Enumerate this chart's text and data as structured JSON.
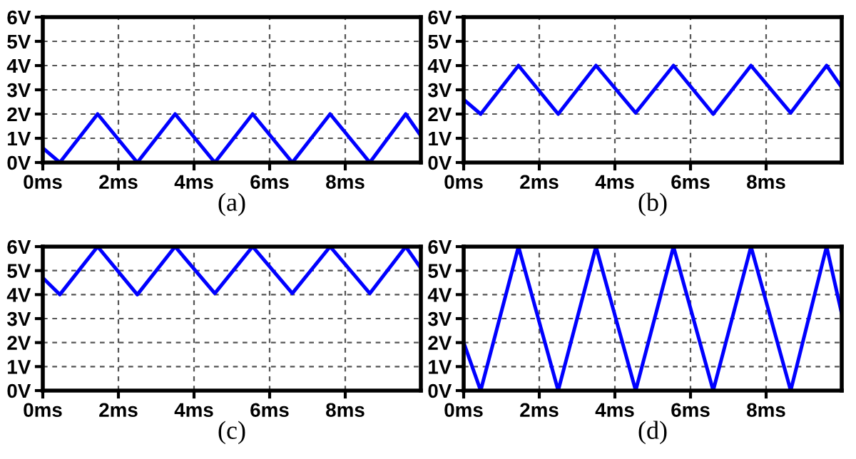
{
  "chart_data": [
    {
      "type": "line",
      "xlabel": "(a)",
      "x": [
        0,
        0.45,
        1.45,
        2.5,
        3.5,
        4.55,
        5.55,
        6.6,
        7.6,
        8.65,
        9.6,
        10
      ],
      "series": [
        {
          "color": "#0000ff",
          "values": [
            0.6,
            0,
            2,
            0,
            2,
            0,
            2,
            0,
            2,
            0,
            2,
            1.1
          ]
        }
      ],
      "xlim": [
        0,
        10
      ],
      "ylim": [
        0,
        6
      ],
      "xticks": [
        {
          "value": 0,
          "label": "0ms"
        },
        {
          "value": 2,
          "label": "2ms"
        },
        {
          "value": 4,
          "label": "4ms"
        },
        {
          "value": 6,
          "label": "6ms"
        },
        {
          "value": 8,
          "label": "8ms"
        }
      ],
      "yticks": [
        {
          "value": 0,
          "label": "0V"
        },
        {
          "value": 1,
          "label": "1V"
        },
        {
          "value": 2,
          "label": "2V"
        },
        {
          "value": 3,
          "label": "3V"
        },
        {
          "value": 4,
          "label": "4V"
        },
        {
          "value": 5,
          "label": "5V"
        },
        {
          "value": 6,
          "label": "6V"
        }
      ],
      "grid": true,
      "line_style": "solid",
      "marker": "none"
    },
    {
      "type": "line",
      "xlabel": "(b)",
      "x": [
        0,
        0.45,
        1.45,
        2.5,
        3.5,
        4.55,
        5.55,
        6.6,
        7.6,
        8.65,
        9.6,
        10
      ],
      "series": [
        {
          "color": "#0000ff",
          "values": [
            2.6,
            2,
            4,
            2,
            4,
            2.05,
            4,
            2,
            4,
            2.05,
            4,
            3.1
          ]
        }
      ],
      "xlim": [
        0,
        10
      ],
      "ylim": [
        0,
        6
      ],
      "xticks": [
        {
          "value": 0,
          "label": "0ms"
        },
        {
          "value": 2,
          "label": "2ms"
        },
        {
          "value": 4,
          "label": "4ms"
        },
        {
          "value": 6,
          "label": "6ms"
        },
        {
          "value": 8,
          "label": "8ms"
        }
      ],
      "yticks": [
        {
          "value": 0,
          "label": "0V"
        },
        {
          "value": 1,
          "label": "1V"
        },
        {
          "value": 2,
          "label": "2V"
        },
        {
          "value": 3,
          "label": "3V"
        },
        {
          "value": 4,
          "label": "4V"
        },
        {
          "value": 5,
          "label": "5V"
        },
        {
          "value": 6,
          "label": "6V"
        }
      ],
      "grid": true,
      "line_style": "solid",
      "marker": "none"
    },
    {
      "type": "line",
      "xlabel": "(c)",
      "x": [
        0,
        0.45,
        1.45,
        2.5,
        3.5,
        4.55,
        5.55,
        6.6,
        7.6,
        8.65,
        9.6,
        10
      ],
      "series": [
        {
          "color": "#0000ff",
          "values": [
            4.7,
            4,
            6,
            4,
            6,
            4.05,
            6,
            4.05,
            6,
            4.05,
            6,
            5.1
          ]
        }
      ],
      "xlim": [
        0,
        10
      ],
      "ylim": [
        0,
        6
      ],
      "xticks": [
        {
          "value": 0,
          "label": "0ms"
        },
        {
          "value": 2,
          "label": "2ms"
        },
        {
          "value": 4,
          "label": "4ms"
        },
        {
          "value": 6,
          "label": "6ms"
        },
        {
          "value": 8,
          "label": "8ms"
        }
      ],
      "yticks": [
        {
          "value": 0,
          "label": "0V"
        },
        {
          "value": 1,
          "label": "1V"
        },
        {
          "value": 2,
          "label": "2V"
        },
        {
          "value": 3,
          "label": "3V"
        },
        {
          "value": 4,
          "label": "4V"
        },
        {
          "value": 5,
          "label": "5V"
        },
        {
          "value": 6,
          "label": "6V"
        }
      ],
      "grid": true,
      "line_style": "solid",
      "marker": "none"
    },
    {
      "type": "line",
      "xlabel": "(d)",
      "x": [
        0,
        0.45,
        1.45,
        2.5,
        3.5,
        4.55,
        5.55,
        6.6,
        7.6,
        8.65,
        9.6,
        10
      ],
      "series": [
        {
          "color": "#0000ff",
          "values": [
            2,
            0,
            6,
            0,
            6,
            0,
            6,
            0,
            6,
            0,
            6,
            3.2
          ]
        }
      ],
      "xlim": [
        0,
        10
      ],
      "ylim": [
        0,
        6
      ],
      "xticks": [
        {
          "value": 0,
          "label": "0ms"
        },
        {
          "value": 2,
          "label": "2ms"
        },
        {
          "value": 4,
          "label": "4ms"
        },
        {
          "value": 6,
          "label": "6ms"
        },
        {
          "value": 8,
          "label": "8ms"
        }
      ],
      "yticks": [
        {
          "value": 0,
          "label": "0V"
        },
        {
          "value": 1,
          "label": "1V"
        },
        {
          "value": 2,
          "label": "2V"
        },
        {
          "value": 3,
          "label": "3V"
        },
        {
          "value": 4,
          "label": "4V"
        },
        {
          "value": 5,
          "label": "5V"
        },
        {
          "value": 6,
          "label": "6V"
        }
      ],
      "grid": true,
      "line_style": "solid",
      "marker": "none"
    }
  ]
}
